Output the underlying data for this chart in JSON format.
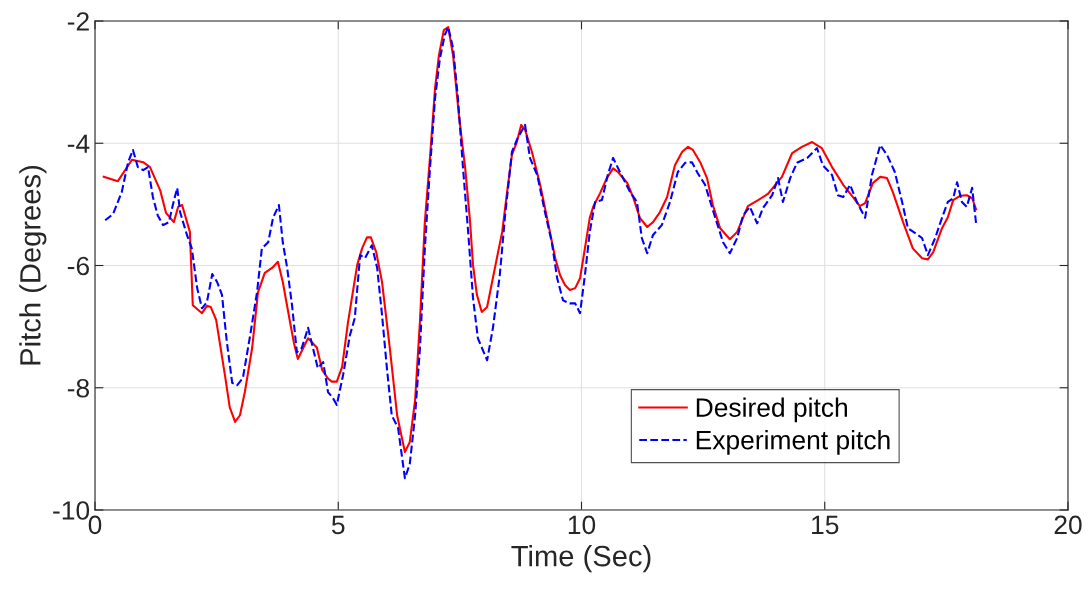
{
  "chart_data": {
    "type": "line",
    "xlabel": "Time (Sec)",
    "ylabel": "Pitch (Degrees)",
    "xlim": [
      0,
      20
    ],
    "xticks": [
      0,
      5,
      10,
      15,
      20
    ],
    "ylim": [
      -10,
      -2
    ],
    "yticks": [
      -10,
      -8,
      -6,
      -4,
      -2
    ],
    "grid": true,
    "legend": "bottom right",
    "series": [
      {
        "name": "Desired pitch",
        "color": "#ff0000",
        "line_style": "solid",
        "x": [
          0.18,
          0.47,
          0.76,
          0.99,
          1.13,
          1.34,
          1.46,
          1.62,
          1.71,
          1.79,
          1.95,
          2.01,
          2.2,
          2.3,
          2.38,
          2.49,
          2.67,
          2.77,
          2.88,
          2.98,
          3.08,
          3.23,
          3.35,
          3.49,
          3.64,
          3.76,
          3.86,
          4.01,
          4.09,
          4.17,
          4.28,
          4.38,
          4.56,
          4.67,
          4.79,
          4.87,
          4.97,
          5.08,
          5.2,
          5.39,
          5.49,
          5.59,
          5.67,
          5.78,
          5.9,
          6.06,
          6.21,
          6.37,
          6.47,
          6.58,
          6.68,
          6.78,
          6.89,
          6.99,
          7.07,
          7.17,
          7.26,
          7.36,
          7.48,
          7.61,
          7.71,
          7.77,
          7.85,
          7.95,
          8.06,
          8.22,
          8.37,
          8.47,
          8.57,
          8.67,
          8.76,
          8.84,
          8.98,
          9.15,
          9.31,
          9.46,
          9.56,
          9.66,
          9.76,
          9.87,
          9.97,
          10.07,
          10.17,
          10.24,
          10.38,
          10.52,
          10.65,
          10.75,
          10.94,
          11.06,
          11.2,
          11.35,
          11.47,
          11.61,
          11.76,
          11.92,
          12.07,
          12.19,
          12.29,
          12.44,
          12.58,
          12.7,
          12.85,
          13.05,
          13.2,
          13.42,
          13.63,
          13.83,
          14.12,
          14.33,
          14.53,
          14.74,
          14.94,
          15.15,
          15.38,
          15.58,
          15.72,
          15.83,
          15.99,
          16.14,
          16.28,
          16.4,
          16.61,
          16.81,
          17.0,
          17.12,
          17.23,
          17.41,
          17.53,
          17.64,
          17.78,
          17.92,
          18.03,
          18.11
        ],
        "values": [
          -4.55,
          -4.62,
          -4.27,
          -4.31,
          -4.39,
          -4.77,
          -5.14,
          -5.29,
          -5.04,
          -5.01,
          -5.45,
          -6.65,
          -6.78,
          -6.66,
          -6.68,
          -6.89,
          -7.79,
          -8.32,
          -8.56,
          -8.45,
          -8.07,
          -7.35,
          -6.44,
          -6.12,
          -6.04,
          -5.94,
          -6.27,
          -6.93,
          -7.27,
          -7.53,
          -7.35,
          -7.19,
          -7.34,
          -7.71,
          -7.85,
          -7.9,
          -7.9,
          -7.66,
          -6.93,
          -5.99,
          -5.72,
          -5.54,
          -5.54,
          -5.78,
          -6.27,
          -7.35,
          -8.45,
          -9.05,
          -8.89,
          -8.2,
          -6.9,
          -5.29,
          -4.19,
          -3.1,
          -2.56,
          -2.15,
          -2.1,
          -2.56,
          -3.54,
          -4.41,
          -5.29,
          -5.99,
          -6.48,
          -6.76,
          -6.68,
          -6.04,
          -5.45,
          -4.8,
          -4.19,
          -3.98,
          -3.7,
          -3.78,
          -4.14,
          -4.68,
          -5.29,
          -5.88,
          -6.16,
          -6.32,
          -6.4,
          -6.37,
          -6.21,
          -5.72,
          -5.22,
          -5.04,
          -4.82,
          -4.57,
          -4.41,
          -4.47,
          -4.65,
          -4.88,
          -5.22,
          -5.37,
          -5.29,
          -5.13,
          -4.88,
          -4.36,
          -4.14,
          -4.06,
          -4.11,
          -4.31,
          -4.57,
          -5.01,
          -5.39,
          -5.57,
          -5.45,
          -5.03,
          -4.93,
          -4.83,
          -4.55,
          -4.16,
          -4.06,
          -3.98,
          -4.08,
          -4.39,
          -4.68,
          -4.88,
          -5.03,
          -4.98,
          -4.65,
          -4.55,
          -4.57,
          -4.8,
          -5.29,
          -5.72,
          -5.88,
          -5.9,
          -5.78,
          -5.39,
          -5.21,
          -4.93,
          -4.86,
          -4.85,
          -4.9,
          -5.08
        ]
      },
      {
        "name": "Experiment pitch",
        "color": "#0000ff",
        "line_style": "dashed",
        "x": [
          0.21,
          0.37,
          0.55,
          0.68,
          0.78,
          0.88,
          0.99,
          1.09,
          1.19,
          1.29,
          1.4,
          1.52,
          1.6,
          1.69,
          1.75,
          1.89,
          1.99,
          2.1,
          2.2,
          2.3,
          2.41,
          2.51,
          2.61,
          2.71,
          2.82,
          2.92,
          3.04,
          3.19,
          3.33,
          3.43,
          3.56,
          3.66,
          3.78,
          3.86,
          3.95,
          4.05,
          4.15,
          4.25,
          4.38,
          4.48,
          4.58,
          4.69,
          4.79,
          4.89,
          4.97,
          5.1,
          5.24,
          5.34,
          5.45,
          5.55,
          5.69,
          5.8,
          5.9,
          6.0,
          6.1,
          6.23,
          6.37,
          6.47,
          6.58,
          6.68,
          6.78,
          6.89,
          6.99,
          7.09,
          7.19,
          7.26,
          7.36,
          7.46,
          7.56,
          7.67,
          7.77,
          7.87,
          8.06,
          8.18,
          8.32,
          8.43,
          8.57,
          8.69,
          8.84,
          8.94,
          9.09,
          9.25,
          9.39,
          9.5,
          9.62,
          9.76,
          9.87,
          9.97,
          10.07,
          10.17,
          10.28,
          10.42,
          10.54,
          10.65,
          10.79,
          11.0,
          11.14,
          11.24,
          11.35,
          11.47,
          11.65,
          11.82,
          11.98,
          12.13,
          12.27,
          12.39,
          12.54,
          12.75,
          12.91,
          13.05,
          13.2,
          13.32,
          13.46,
          13.61,
          13.73,
          13.92,
          14.04,
          14.14,
          14.29,
          14.43,
          14.64,
          14.84,
          14.96,
          15.15,
          15.27,
          15.38,
          15.52,
          15.66,
          15.83,
          15.97,
          16.14,
          16.28,
          16.44,
          16.59,
          16.71,
          16.86,
          17.0,
          17.12,
          17.27,
          17.41,
          17.53,
          17.64,
          17.72,
          17.82,
          17.92,
          18.03,
          18.11
        ],
        "values": [
          -5.26,
          -5.16,
          -4.8,
          -4.31,
          -4.11,
          -4.39,
          -4.44,
          -4.39,
          -4.88,
          -5.18,
          -5.34,
          -5.29,
          -5.01,
          -4.73,
          -5.13,
          -5.5,
          -5.72,
          -6.37,
          -6.7,
          -6.6,
          -6.14,
          -6.27,
          -6.48,
          -7.25,
          -7.92,
          -7.96,
          -7.84,
          -7.14,
          -6.44,
          -5.72,
          -5.62,
          -5.22,
          -5.01,
          -5.62,
          -6.04,
          -6.65,
          -7.42,
          -7.35,
          -7.02,
          -7.35,
          -7.68,
          -7.58,
          -8.07,
          -8.17,
          -8.28,
          -7.79,
          -7.14,
          -6.86,
          -5.83,
          -5.88,
          -5.67,
          -6.04,
          -6.81,
          -7.68,
          -8.45,
          -8.66,
          -9.48,
          -9.25,
          -8.45,
          -7.35,
          -5.72,
          -4.36,
          -3.26,
          -2.61,
          -2.23,
          -2.1,
          -2.44,
          -3.26,
          -4.36,
          -5.45,
          -6.53,
          -7.19,
          -7.55,
          -7.02,
          -6.16,
          -5.18,
          -4.14,
          -3.91,
          -3.7,
          -4.24,
          -4.52,
          -5.13,
          -5.62,
          -6.21,
          -6.57,
          -6.62,
          -6.62,
          -6.78,
          -6.16,
          -5.45,
          -4.96,
          -4.93,
          -4.52,
          -4.24,
          -4.47,
          -4.8,
          -4.96,
          -5.55,
          -5.8,
          -5.5,
          -5.34,
          -4.96,
          -4.47,
          -4.32,
          -4.31,
          -4.49,
          -4.68,
          -5.22,
          -5.62,
          -5.8,
          -5.55,
          -5.18,
          -5.04,
          -5.31,
          -5.06,
          -4.85,
          -4.57,
          -4.96,
          -4.57,
          -4.32,
          -4.24,
          -4.08,
          -4.36,
          -4.52,
          -4.85,
          -4.88,
          -4.68,
          -4.96,
          -5.22,
          -4.52,
          -4.03,
          -4.19,
          -4.47,
          -4.96,
          -5.39,
          -5.47,
          -5.55,
          -5.83,
          -5.55,
          -5.22,
          -4.96,
          -4.9,
          -4.64,
          -4.96,
          -5.04,
          -4.73,
          -5.31
        ]
      }
    ]
  }
}
